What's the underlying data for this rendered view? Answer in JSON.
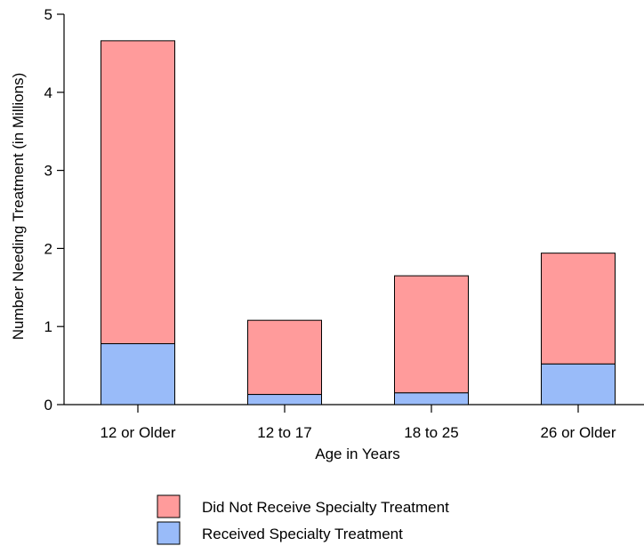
{
  "chart_data": {
    "type": "bar",
    "stacked": true,
    "categories": [
      "12 or Older",
      "12 to 17",
      "18 to 25",
      "26 or Older"
    ],
    "series": [
      {
        "name": "Received Specialty Treatment",
        "values": [
          0.78,
          0.13,
          0.15,
          0.52
        ],
        "color": "#99bbf9"
      },
      {
        "name": "Did Not Receive Specialty Treatment",
        "values": [
          3.88,
          0.95,
          1.5,
          1.42
        ],
        "color": "#ff9b9b"
      }
    ],
    "totals": [
      4.66,
      1.08,
      1.65,
      1.94
    ],
    "xlabel": "Age in Years",
    "ylabel": "Number Needing Treatment (in Millions)",
    "ylim": [
      0,
      5
    ],
    "yticks": [
      "0",
      "1",
      "2",
      "3",
      "4",
      "5"
    ],
    "grid": false,
    "legend_position": "bottom"
  }
}
